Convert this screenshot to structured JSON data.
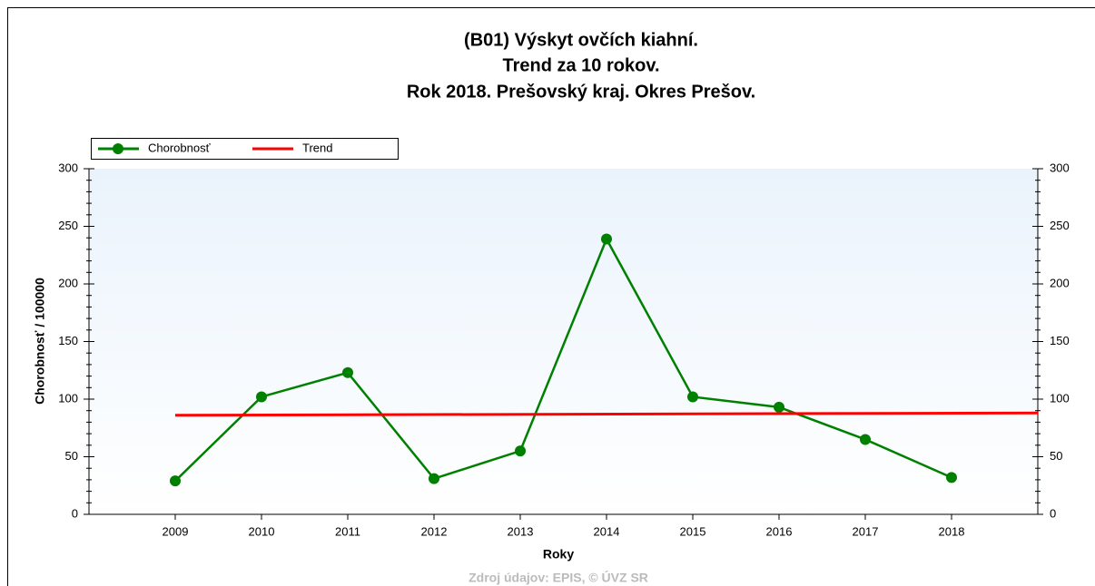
{
  "chart_data": {
    "type": "line",
    "title": [
      "(B01) Výskyt ovčích kiahní.",
      "Trend za 10 rokov.",
      "Rok 2018. Prešovský kraj. Okres Prešov."
    ],
    "x_label": "Roky",
    "y_label": "Chorobnosť / 100000",
    "source": "Zdroj údajov: EPIS, © ÚVZ SR",
    "x": [
      2009,
      2010,
      2011,
      2012,
      2013,
      2014,
      2015,
      2016,
      2017,
      2018
    ],
    "series": [
      {
        "name": "Chorobnosť",
        "color": "#008000",
        "values": [
          29,
          102,
          123,
          31,
          55,
          239,
          102,
          93,
          65,
          32
        ],
        "marker": true
      },
      {
        "name": "Trend",
        "color": "#ff0000",
        "x": [
          2009,
          2019
        ],
        "values": [
          86,
          88
        ],
        "marker": false
      }
    ],
    "xlim": [
      2008,
      2019
    ],
    "xticks": [
      2009,
      2010,
      2011,
      2012,
      2013,
      2014,
      2015,
      2016,
      2017,
      2018
    ],
    "ylim": [
      0,
      300
    ],
    "yticks": [
      0,
      50,
      100,
      150,
      200,
      250,
      300
    ],
    "y2lim": [
      0,
      300
    ],
    "y2ticks": [
      0,
      50,
      100,
      150,
      200,
      250,
      300
    ],
    "legend": "top-left"
  }
}
